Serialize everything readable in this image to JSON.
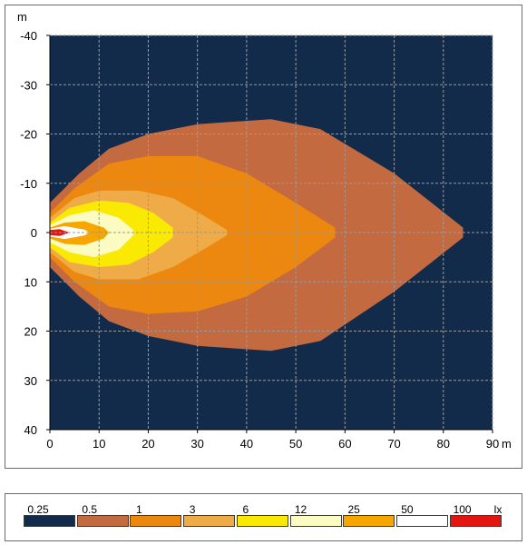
{
  "chart_data": {
    "type": "heatmap",
    "title": "",
    "x_unit_label": "m",
    "y_unit_label": "m",
    "xlim": [
      0,
      90
    ],
    "ylim": [
      -40,
      40
    ],
    "x_ticks": [
      "0",
      "10",
      "20",
      "30",
      "40",
      "50",
      "60",
      "70",
      "80",
      "90"
    ],
    "y_ticks": [
      "-40",
      "-30",
      "-20",
      "-10",
      "0",
      "10",
      "20",
      "30",
      "40"
    ],
    "grid": true,
    "background_color": "#132b4b",
    "isolux_contours": [
      {
        "level": "0.5",
        "color": "#c46a40",
        "points": [
          [
            0,
            -6
          ],
          [
            6,
            -12
          ],
          [
            12,
            -17
          ],
          [
            20,
            -20
          ],
          [
            30,
            -22
          ],
          [
            45,
            -23
          ],
          [
            55,
            -21
          ],
          [
            70,
            -12
          ],
          [
            84,
            -1
          ],
          [
            84,
            1
          ],
          [
            70,
            12
          ],
          [
            55,
            22
          ],
          [
            45,
            24
          ],
          [
            30,
            23
          ],
          [
            20,
            21
          ],
          [
            12,
            18
          ],
          [
            6,
            13
          ],
          [
            0,
            7
          ]
        ]
      },
      {
        "level": "1",
        "color": "#ec880f",
        "points": [
          [
            0,
            -4
          ],
          [
            5,
            -9
          ],
          [
            12,
            -14
          ],
          [
            20,
            -15.5
          ],
          [
            30,
            -15.5
          ],
          [
            40,
            -12
          ],
          [
            50,
            -6
          ],
          [
            58,
            -1
          ],
          [
            58,
            1
          ],
          [
            50,
            7
          ],
          [
            40,
            13
          ],
          [
            30,
            16
          ],
          [
            20,
            16.5
          ],
          [
            12,
            15
          ],
          [
            5,
            10
          ],
          [
            0,
            5
          ]
        ]
      },
      {
        "level": "3",
        "color": "#eeab48",
        "points": [
          [
            0,
            -3
          ],
          [
            5,
            -7
          ],
          [
            10,
            -8.5
          ],
          [
            18,
            -8.5
          ],
          [
            25,
            -7
          ],
          [
            32,
            -3
          ],
          [
            36,
            -0.5
          ],
          [
            36,
            0.5
          ],
          [
            32,
            3
          ],
          [
            25,
            7
          ],
          [
            18,
            9.5
          ],
          [
            10,
            9.5
          ],
          [
            5,
            8
          ],
          [
            0,
            4
          ]
        ]
      },
      {
        "level": "6",
        "color": "#faea03",
        "points": [
          [
            0,
            -2
          ],
          [
            4,
            -5
          ],
          [
            10,
            -6.5
          ],
          [
            16,
            -6
          ],
          [
            21,
            -4
          ],
          [
            25,
            -1
          ],
          [
            25,
            1
          ],
          [
            21,
            4
          ],
          [
            16,
            6.5
          ],
          [
            10,
            7
          ],
          [
            4,
            6
          ],
          [
            0,
            3
          ]
        ]
      },
      {
        "level": "12",
        "color": "#fcfbc2",
        "points": [
          [
            0,
            -1.5
          ],
          [
            4,
            -3.5
          ],
          [
            9,
            -4.5
          ],
          [
            14,
            -3
          ],
          [
            17,
            -0.5
          ],
          [
            17,
            0.5
          ],
          [
            14,
            3.5
          ],
          [
            9,
            5
          ],
          [
            4,
            4
          ],
          [
            0,
            2
          ]
        ]
      },
      {
        "level": "25",
        "color": "#f7a600",
        "points": [
          [
            0,
            -1
          ],
          [
            3,
            -2
          ],
          [
            7,
            -2.3
          ],
          [
            11,
            -1
          ],
          [
            12,
            0
          ],
          [
            11,
            1.2
          ],
          [
            7,
            2.5
          ],
          [
            3,
            2.3
          ],
          [
            0,
            1.2
          ]
        ]
      },
      {
        "level": "50",
        "color": "#ffffff",
        "points": [
          [
            0,
            -0.8
          ],
          [
            3,
            -1.3
          ],
          [
            7,
            -0.6
          ],
          [
            8,
            0
          ],
          [
            7,
            0.6
          ],
          [
            3,
            1.3
          ],
          [
            0,
            0.8
          ]
        ]
      },
      {
        "level": "100",
        "color": "#e31510",
        "points": [
          [
            0,
            -0.5
          ],
          [
            2,
            -0.7
          ],
          [
            4,
            0
          ],
          [
            2,
            0.7
          ],
          [
            0,
            0.5
          ]
        ]
      }
    ],
    "legend": {
      "unit": "lx",
      "entries": [
        {
          "label": "0.25",
          "color": "#132b4b"
        },
        {
          "label": "0.5",
          "color": "#c46a40"
        },
        {
          "label": "1",
          "color": "#ec880f"
        },
        {
          "label": "3",
          "color": "#eeab48"
        },
        {
          "label": "6",
          "color": "#faea03"
        },
        {
          "label": "12",
          "color": "#fcfbc2"
        },
        {
          "label": "25",
          "color": "#f7a600"
        },
        {
          "label": "50",
          "color": "#ffffff"
        },
        {
          "label": "100",
          "color": "#e31510"
        }
      ]
    }
  }
}
